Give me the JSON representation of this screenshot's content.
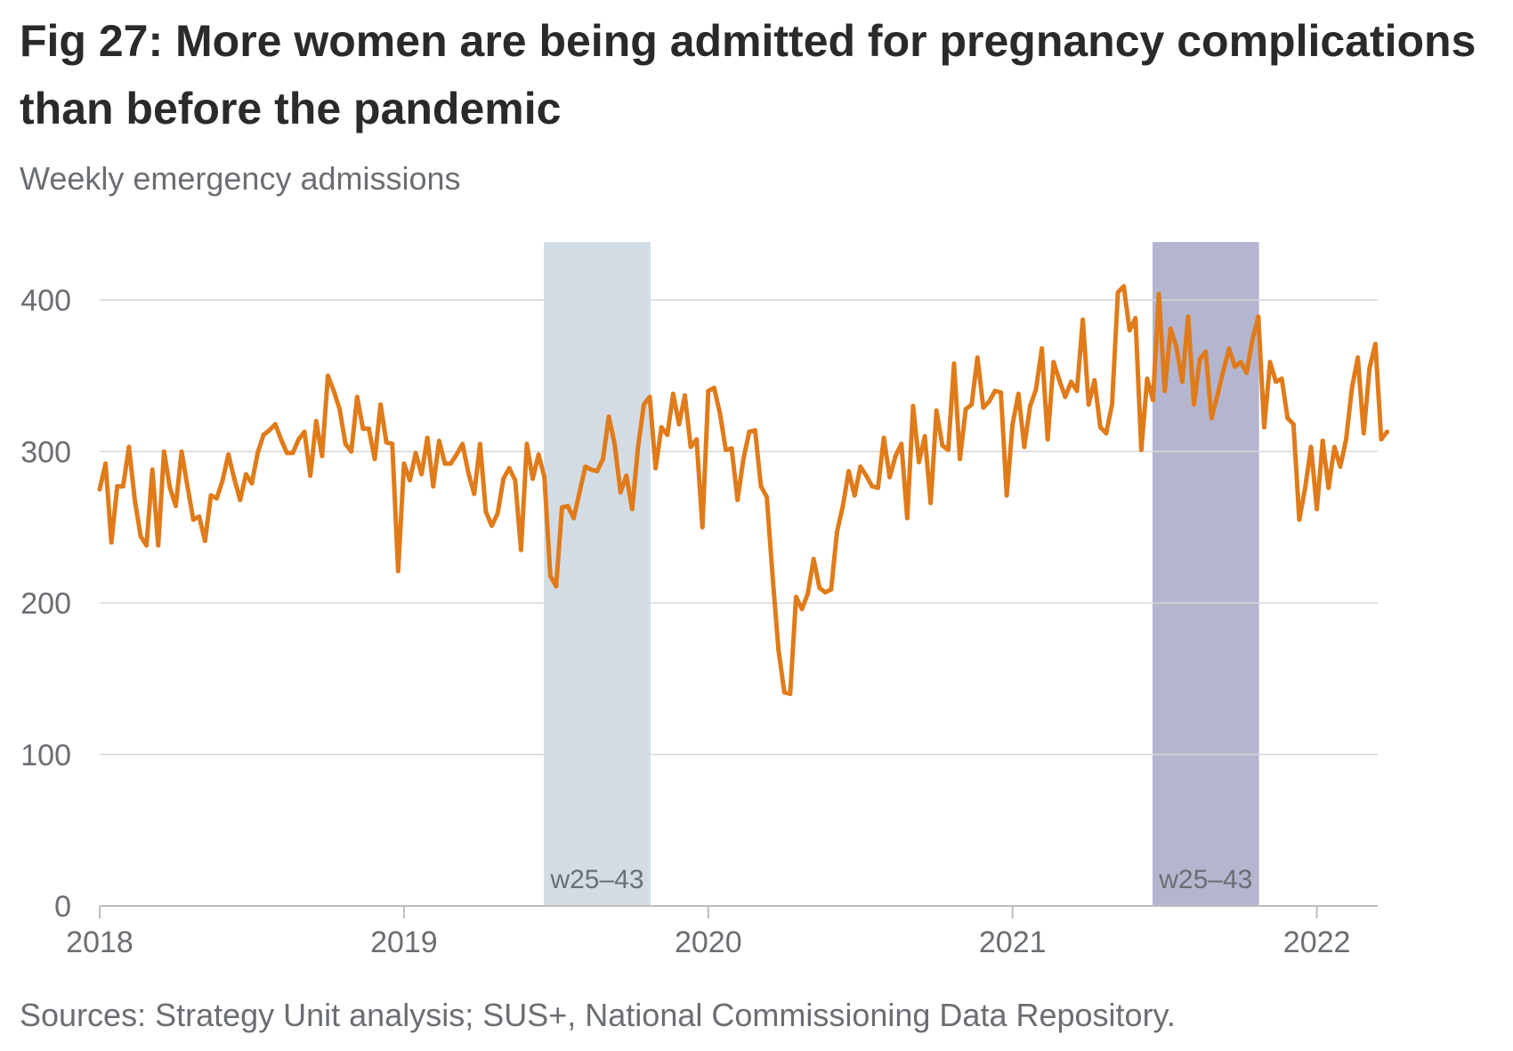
{
  "title": "Fig 27: More women are being admitted for pregnancy complications than before the pandemic",
  "subtitle": "Weekly emergency admissions",
  "source": "Sources: Strategy Unit analysis; SUS+, National Commissioning Data Repository.",
  "colors": {
    "line": "#e07b1a",
    "band_2019": "#d3dce4",
    "band_2021": "#b4b6cf",
    "grid": "#d6d6d6",
    "axis": "#bdbdbd",
    "text": "#6a6e73"
  },
  "chart_data": {
    "type": "line",
    "title": "Fig 27: More women are being admitted for pregnancy complications than before the pandemic",
    "ylabel": "Weekly emergency admissions",
    "xlabel": "",
    "ylim": [
      0,
      450
    ],
    "xlim": [
      2018.0,
      2022.2
    ],
    "y_ticks": [
      0,
      100,
      200,
      300,
      400
    ],
    "x_ticks": [
      2018,
      2019,
      2020,
      2021,
      2022
    ],
    "x_tick_labels": [
      "2018",
      "2019",
      "2020",
      "2021",
      "2022"
    ],
    "grid": true,
    "shaded_periods": [
      {
        "label": "w25–43",
        "start": 2019.46,
        "end": 2019.81,
        "color": "#d3dce4"
      },
      {
        "label": "w25–43",
        "start": 2021.46,
        "end": 2021.81,
        "color": "#b4b6cf"
      }
    ],
    "series": [
      {
        "name": "",
        "x_start": 2018.0,
        "x_step_weeks": 1,
        "values": [
          275,
          292,
          240,
          277,
          277,
          303,
          268,
          244,
          238,
          288,
          238,
          300,
          276,
          264,
          300,
          277,
          255,
          257,
          241,
          271,
          269,
          281,
          298,
          282,
          268,
          285,
          279,
          299,
          311,
          314,
          318,
          308,
          299,
          299,
          308,
          313,
          284,
          320,
          297,
          350,
          340,
          328,
          305,
          300,
          336,
          315,
          315,
          295,
          331,
          306,
          305,
          221,
          292,
          281,
          299,
          285,
          309,
          277,
          307,
          292,
          292,
          298,
          305,
          286,
          272,
          305,
          260,
          251,
          259,
          282,
          289,
          281,
          235,
          305,
          282,
          298,
          283,
          218,
          211,
          263,
          264,
          256,
          273,
          290,
          288,
          287,
          295,
          323,
          305,
          273,
          284,
          262,
          303,
          331,
          336,
          289,
          316,
          311,
          338,
          318,
          337,
          303,
          308,
          250,
          340,
          342,
          325,
          301,
          302,
          268,
          295,
          313,
          314,
          277,
          270,
          217,
          169,
          141,
          140,
          204,
          196,
          206,
          229,
          210,
          207,
          209,
          247,
          264,
          287,
          271,
          290,
          284,
          277,
          276,
          309,
          283,
          297,
          305,
          256,
          330,
          293,
          310,
          266,
          327,
          304,
          301,
          358,
          295,
          328,
          331,
          362,
          329,
          333,
          340,
          339,
          271,
          318,
          338,
          303,
          330,
          341,
          368,
          308,
          359,
          347,
          336,
          346,
          340,
          387,
          331,
          347,
          316,
          312,
          331,
          405,
          409,
          380,
          388,
          301,
          348,
          334,
          404,
          340,
          381,
          369,
          346,
          389,
          331,
          361,
          366,
          322,
          337,
          353,
          368,
          356,
          359,
          352,
          374,
          389,
          316,
          359,
          346,
          348,
          322,
          318,
          255,
          276,
          303,
          262,
          307,
          276,
          303,
          290,
          308,
          342,
          362,
          312,
          355,
          371,
          308,
          313
        ]
      }
    ]
  }
}
